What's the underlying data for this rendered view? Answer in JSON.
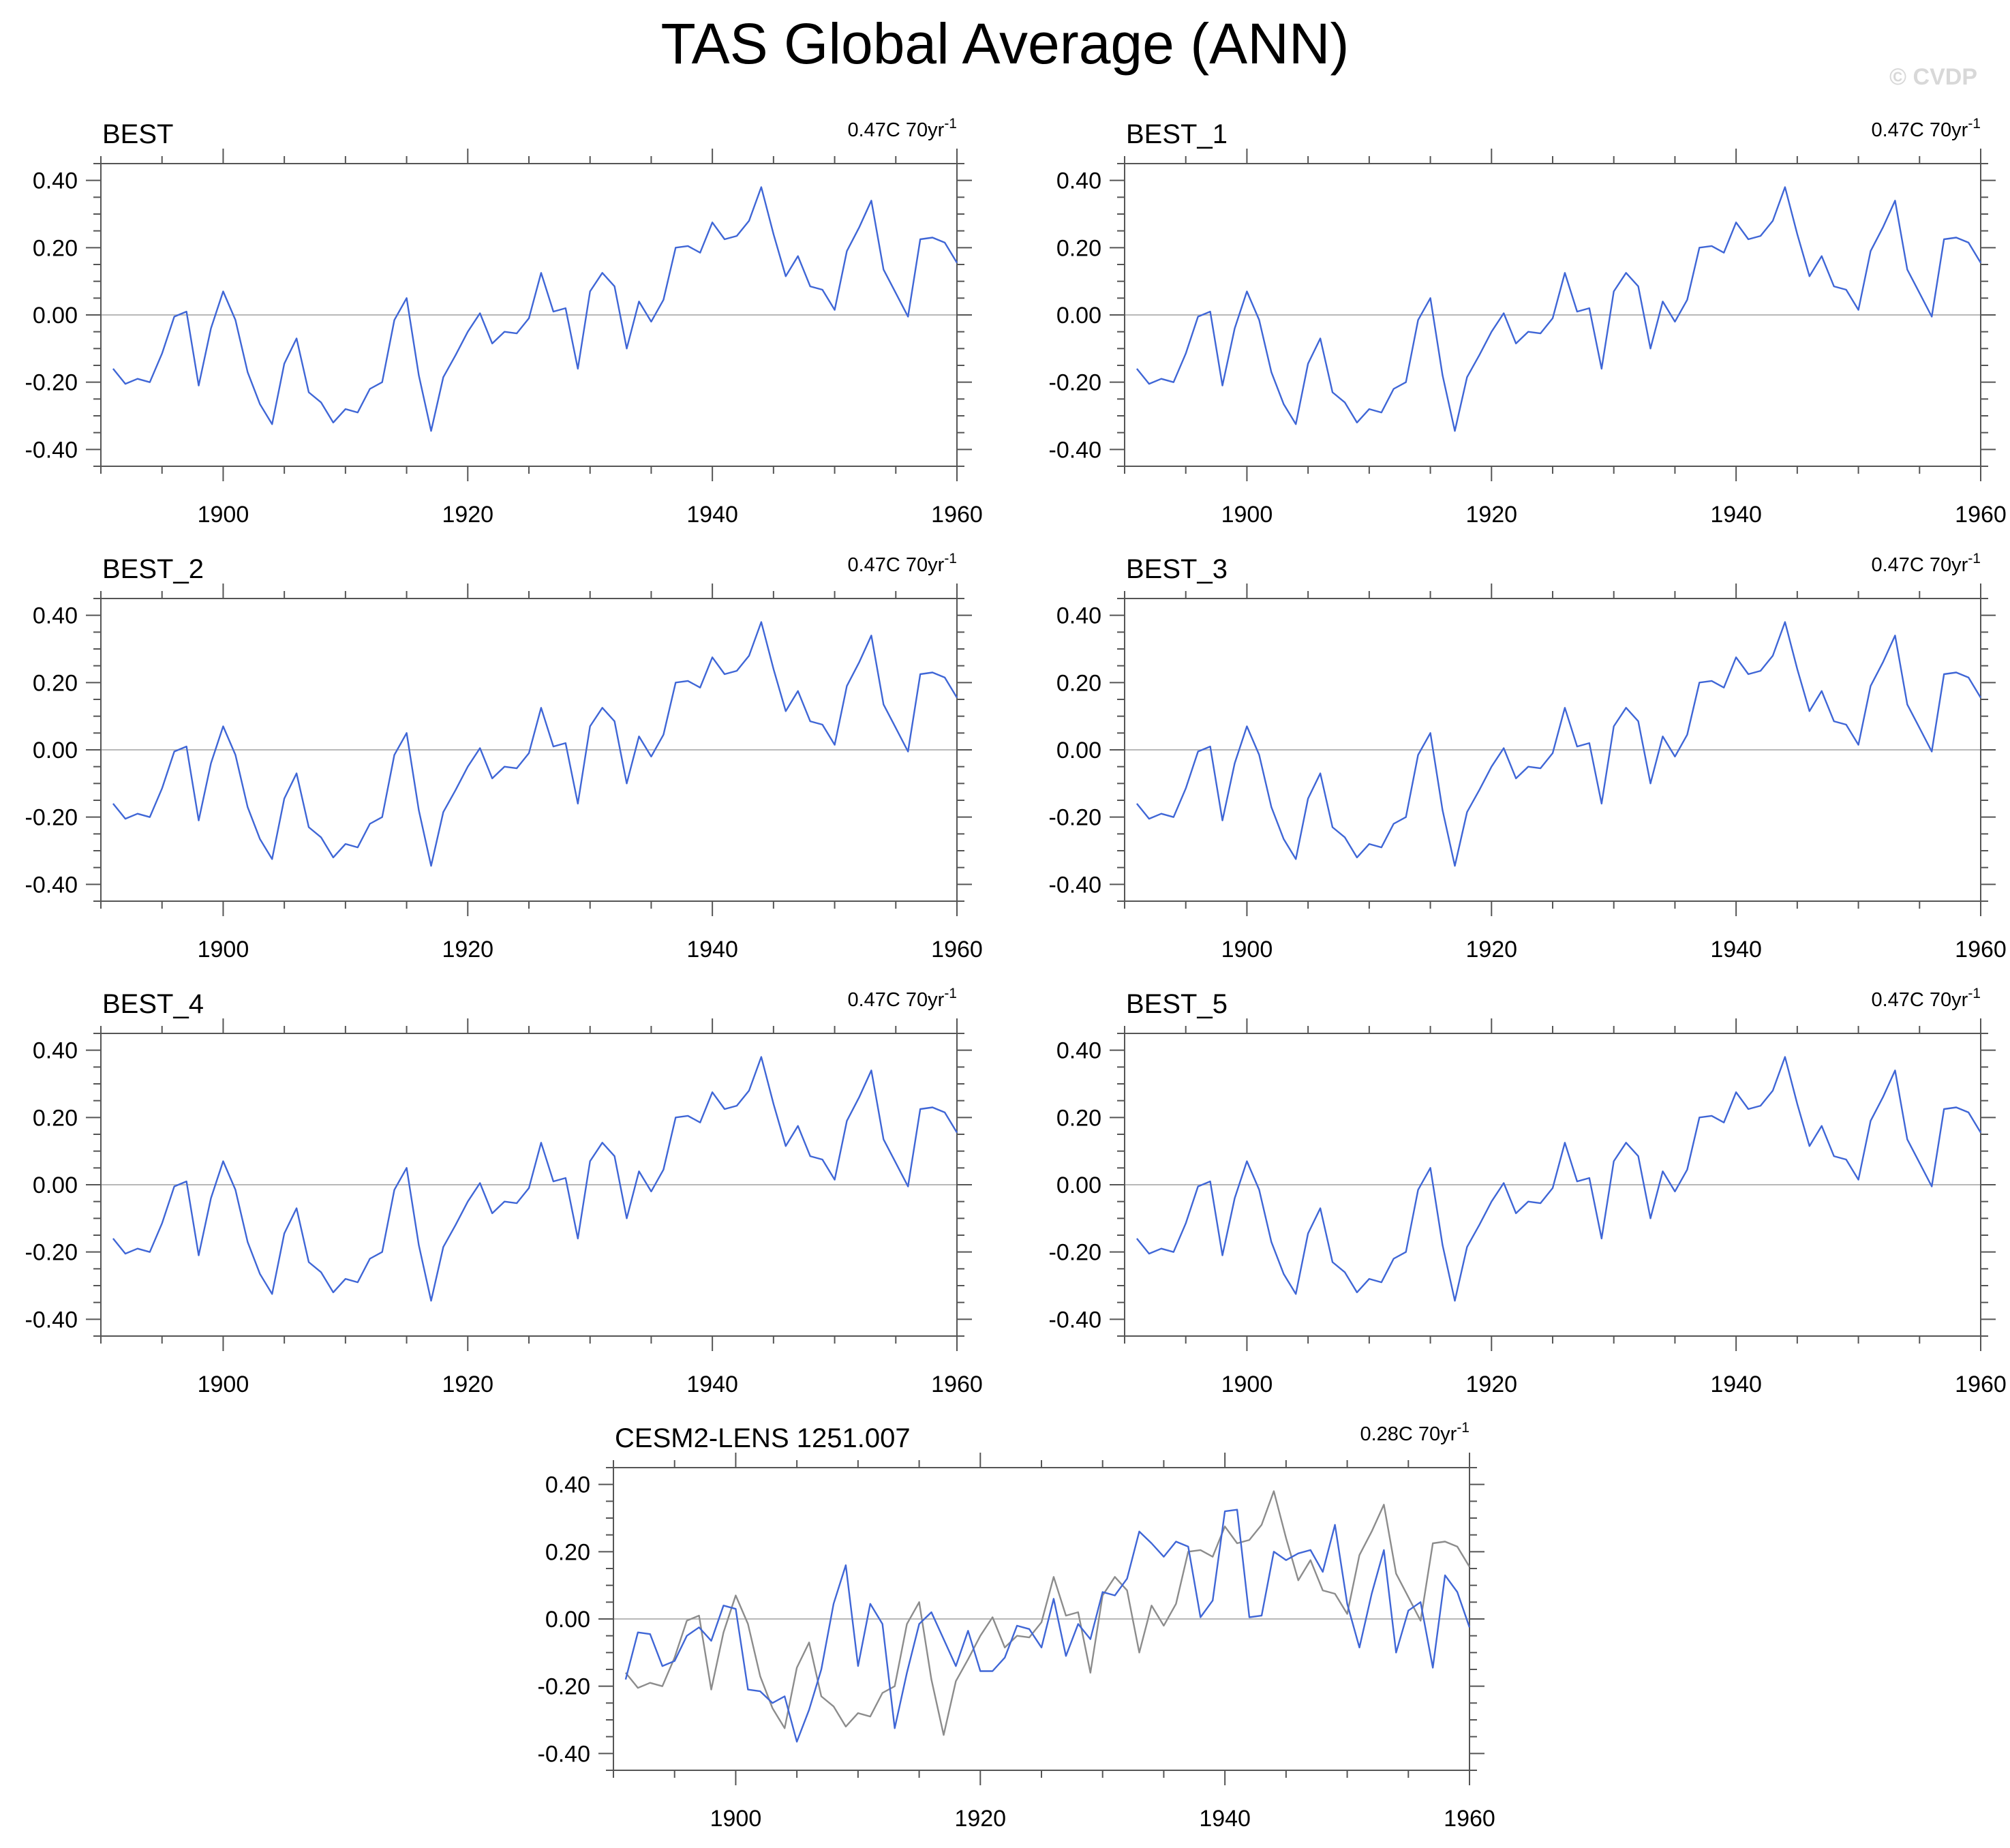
{
  "title": "TAS Global Average (ANN)",
  "copyright": "© CVDP",
  "colors": {
    "series": "#3f66d6",
    "observation": "#8c8c8c",
    "axis": "#555555",
    "zero_line": "#b8b8b8"
  },
  "chart_data": [
    {
      "type": "line",
      "title": "BEST",
      "trend_label": "0.47C 70yr",
      "trend_superscript": "-1",
      "xlim": [
        1890,
        1960
      ],
      "ylim": [
        -0.45,
        0.45
      ],
      "x_ticks": [
        1900,
        1920,
        1940,
        1960
      ],
      "x_tick_labels": [
        "1900",
        "1920",
        "1940",
        "1960"
      ],
      "y_ticks": [
        -0.4,
        -0.2,
        0.0,
        0.2,
        0.4
      ],
      "y_tick_labels": [
        "-0.40",
        "-0.20",
        "0.00",
        "0.20",
        "0.40"
      ],
      "zero_line": true,
      "x_start": 1891,
      "series": [
        {
          "role": "primary",
          "values": [
            -0.16,
            -0.205,
            -0.19,
            -0.2,
            -0.115,
            -0.005,
            0.01,
            -0.21,
            -0.04,
            0.07,
            -0.015,
            -0.17,
            -0.265,
            -0.325,
            -0.145,
            -0.07,
            -0.23,
            -0.26,
            -0.32,
            -0.28,
            -0.29,
            -0.22,
            -0.2,
            -0.015,
            0.05,
            -0.18,
            -0.345,
            -0.185,
            -0.12,
            -0.05,
            0.005,
            -0.085,
            -0.05,
            -0.055,
            -0.01,
            0.125,
            0.01,
            0.02,
            -0.16,
            0.07,
            0.125,
            0.085,
            -0.1,
            0.04,
            -0.02,
            0.045,
            0.2,
            0.205,
            0.185,
            0.275,
            0.225,
            0.235,
            0.28,
            0.38,
            0.24,
            0.115,
            0.175,
            0.085,
            0.075,
            0.015,
            0.19,
            0.26,
            0.34,
            0.135,
            0.065,
            -0.005,
            0.225,
            0.23,
            0.215,
            0.155
          ]
        }
      ]
    },
    {
      "type": "line",
      "title": "BEST_1",
      "trend_label": "0.47C 70yr",
      "trend_superscript": "-1",
      "xlim": [
        1890,
        1960
      ],
      "ylim": [
        -0.45,
        0.45
      ],
      "x_ticks": [
        1900,
        1920,
        1940,
        1960
      ],
      "x_tick_labels": [
        "1900",
        "1920",
        "1940",
        "1960"
      ],
      "y_ticks": [
        -0.4,
        -0.2,
        0.0,
        0.2,
        0.4
      ],
      "y_tick_labels": [
        "-0.40",
        "-0.20",
        "0.00",
        "0.20",
        "0.40"
      ],
      "zero_line": true,
      "x_start": 1891,
      "series": [
        {
          "role": "primary",
          "values": [
            -0.16,
            -0.205,
            -0.19,
            -0.2,
            -0.115,
            -0.005,
            0.01,
            -0.21,
            -0.04,
            0.07,
            -0.015,
            -0.17,
            -0.265,
            -0.325,
            -0.145,
            -0.07,
            -0.23,
            -0.26,
            -0.32,
            -0.28,
            -0.29,
            -0.22,
            -0.2,
            -0.015,
            0.05,
            -0.18,
            -0.345,
            -0.185,
            -0.12,
            -0.05,
            0.005,
            -0.085,
            -0.05,
            -0.055,
            -0.01,
            0.125,
            0.01,
            0.02,
            -0.16,
            0.07,
            0.125,
            0.085,
            -0.1,
            0.04,
            -0.02,
            0.045,
            0.2,
            0.205,
            0.185,
            0.275,
            0.225,
            0.235,
            0.28,
            0.38,
            0.24,
            0.115,
            0.175,
            0.085,
            0.075,
            0.015,
            0.19,
            0.26,
            0.34,
            0.135,
            0.065,
            -0.005,
            0.225,
            0.23,
            0.215,
            0.155
          ]
        }
      ]
    },
    {
      "type": "line",
      "title": "BEST_2",
      "trend_label": "0.47C 70yr",
      "trend_superscript": "-1",
      "xlim": [
        1890,
        1960
      ],
      "ylim": [
        -0.45,
        0.45
      ],
      "x_ticks": [
        1900,
        1920,
        1940,
        1960
      ],
      "x_tick_labels": [
        "1900",
        "1920",
        "1940",
        "1960"
      ],
      "y_ticks": [
        -0.4,
        -0.2,
        0.0,
        0.2,
        0.4
      ],
      "y_tick_labels": [
        "-0.40",
        "-0.20",
        "0.00",
        "0.20",
        "0.40"
      ],
      "zero_line": true,
      "x_start": 1891,
      "series": [
        {
          "role": "primary",
          "values": [
            -0.16,
            -0.205,
            -0.19,
            -0.2,
            -0.115,
            -0.005,
            0.01,
            -0.21,
            -0.04,
            0.07,
            -0.015,
            -0.17,
            -0.265,
            -0.325,
            -0.145,
            -0.07,
            -0.23,
            -0.26,
            -0.32,
            -0.28,
            -0.29,
            -0.22,
            -0.2,
            -0.015,
            0.05,
            -0.18,
            -0.345,
            -0.185,
            -0.12,
            -0.05,
            0.005,
            -0.085,
            -0.05,
            -0.055,
            -0.01,
            0.125,
            0.01,
            0.02,
            -0.16,
            0.07,
            0.125,
            0.085,
            -0.1,
            0.04,
            -0.02,
            0.045,
            0.2,
            0.205,
            0.185,
            0.275,
            0.225,
            0.235,
            0.28,
            0.38,
            0.24,
            0.115,
            0.175,
            0.085,
            0.075,
            0.015,
            0.19,
            0.26,
            0.34,
            0.135,
            0.065,
            -0.005,
            0.225,
            0.23,
            0.215,
            0.155
          ]
        }
      ]
    },
    {
      "type": "line",
      "title": "BEST_3",
      "trend_label": "0.47C 70yr",
      "trend_superscript": "-1",
      "xlim": [
        1890,
        1960
      ],
      "ylim": [
        -0.45,
        0.45
      ],
      "x_ticks": [
        1900,
        1920,
        1940,
        1960
      ],
      "x_tick_labels": [
        "1900",
        "1920",
        "1940",
        "1960"
      ],
      "y_ticks": [
        -0.4,
        -0.2,
        0.0,
        0.2,
        0.4
      ],
      "y_tick_labels": [
        "-0.40",
        "-0.20",
        "0.00",
        "0.20",
        "0.40"
      ],
      "zero_line": true,
      "x_start": 1891,
      "series": [
        {
          "role": "primary",
          "values": [
            -0.16,
            -0.205,
            -0.19,
            -0.2,
            -0.115,
            -0.005,
            0.01,
            -0.21,
            -0.04,
            0.07,
            -0.015,
            -0.17,
            -0.265,
            -0.325,
            -0.145,
            -0.07,
            -0.23,
            -0.26,
            -0.32,
            -0.28,
            -0.29,
            -0.22,
            -0.2,
            -0.015,
            0.05,
            -0.18,
            -0.345,
            -0.185,
            -0.12,
            -0.05,
            0.005,
            -0.085,
            -0.05,
            -0.055,
            -0.01,
            0.125,
            0.01,
            0.02,
            -0.16,
            0.07,
            0.125,
            0.085,
            -0.1,
            0.04,
            -0.02,
            0.045,
            0.2,
            0.205,
            0.185,
            0.275,
            0.225,
            0.235,
            0.28,
            0.38,
            0.24,
            0.115,
            0.175,
            0.085,
            0.075,
            0.015,
            0.19,
            0.26,
            0.34,
            0.135,
            0.065,
            -0.005,
            0.225,
            0.23,
            0.215,
            0.155
          ]
        }
      ]
    },
    {
      "type": "line",
      "title": "BEST_4",
      "trend_label": "0.47C 70yr",
      "trend_superscript": "-1",
      "xlim": [
        1890,
        1960
      ],
      "ylim": [
        -0.45,
        0.45
      ],
      "x_ticks": [
        1900,
        1920,
        1940,
        1960
      ],
      "x_tick_labels": [
        "1900",
        "1920",
        "1940",
        "1960"
      ],
      "y_ticks": [
        -0.4,
        -0.2,
        0.0,
        0.2,
        0.4
      ],
      "y_tick_labels": [
        "-0.40",
        "-0.20",
        "0.00",
        "0.20",
        "0.40"
      ],
      "zero_line": true,
      "x_start": 1891,
      "series": [
        {
          "role": "primary",
          "values": [
            -0.16,
            -0.205,
            -0.19,
            -0.2,
            -0.115,
            -0.005,
            0.01,
            -0.21,
            -0.04,
            0.07,
            -0.015,
            -0.17,
            -0.265,
            -0.325,
            -0.145,
            -0.07,
            -0.23,
            -0.26,
            -0.32,
            -0.28,
            -0.29,
            -0.22,
            -0.2,
            -0.015,
            0.05,
            -0.18,
            -0.345,
            -0.185,
            -0.12,
            -0.05,
            0.005,
            -0.085,
            -0.05,
            -0.055,
            -0.01,
            0.125,
            0.01,
            0.02,
            -0.16,
            0.07,
            0.125,
            0.085,
            -0.1,
            0.04,
            -0.02,
            0.045,
            0.2,
            0.205,
            0.185,
            0.275,
            0.225,
            0.235,
            0.28,
            0.38,
            0.24,
            0.115,
            0.175,
            0.085,
            0.075,
            0.015,
            0.19,
            0.26,
            0.34,
            0.135,
            0.065,
            -0.005,
            0.225,
            0.23,
            0.215,
            0.155
          ]
        }
      ]
    },
    {
      "type": "line",
      "title": "BEST_5",
      "trend_label": "0.47C 70yr",
      "trend_superscript": "-1",
      "xlim": [
        1890,
        1960
      ],
      "ylim": [
        -0.45,
        0.45
      ],
      "x_ticks": [
        1900,
        1920,
        1940,
        1960
      ],
      "x_tick_labels": [
        "1900",
        "1920",
        "1940",
        "1960"
      ],
      "y_ticks": [
        -0.4,
        -0.2,
        0.0,
        0.2,
        0.4
      ],
      "y_tick_labels": [
        "-0.40",
        "-0.20",
        "0.00",
        "0.20",
        "0.40"
      ],
      "zero_line": true,
      "x_start": 1891,
      "series": [
        {
          "role": "primary",
          "values": [
            -0.16,
            -0.205,
            -0.19,
            -0.2,
            -0.115,
            -0.005,
            0.01,
            -0.21,
            -0.04,
            0.07,
            -0.015,
            -0.17,
            -0.265,
            -0.325,
            -0.145,
            -0.07,
            -0.23,
            -0.26,
            -0.32,
            -0.28,
            -0.29,
            -0.22,
            -0.2,
            -0.015,
            0.05,
            -0.18,
            -0.345,
            -0.185,
            -0.12,
            -0.05,
            0.005,
            -0.085,
            -0.05,
            -0.055,
            -0.01,
            0.125,
            0.01,
            0.02,
            -0.16,
            0.07,
            0.125,
            0.085,
            -0.1,
            0.04,
            -0.02,
            0.045,
            0.2,
            0.205,
            0.185,
            0.275,
            0.225,
            0.235,
            0.28,
            0.38,
            0.24,
            0.115,
            0.175,
            0.085,
            0.075,
            0.015,
            0.19,
            0.26,
            0.34,
            0.135,
            0.065,
            -0.005,
            0.225,
            0.23,
            0.215,
            0.155
          ]
        }
      ]
    },
    {
      "type": "line",
      "title": "CESM2-LENS 1251.007",
      "trend_label": "0.28C 70yr",
      "trend_superscript": "-1",
      "xlim": [
        1890,
        1960
      ],
      "ylim": [
        -0.45,
        0.45
      ],
      "x_ticks": [
        1900,
        1920,
        1940,
        1960
      ],
      "x_tick_labels": [
        "1900",
        "1920",
        "1940",
        "1960"
      ],
      "y_ticks": [
        -0.4,
        -0.2,
        0.0,
        0.2,
        0.4
      ],
      "y_tick_labels": [
        "-0.40",
        "-0.20",
        "0.00",
        "0.20",
        "0.40"
      ],
      "zero_line": true,
      "x_start": 1891,
      "series": [
        {
          "role": "observation",
          "values": [
            -0.16,
            -0.205,
            -0.19,
            -0.2,
            -0.115,
            -0.005,
            0.01,
            -0.21,
            -0.04,
            0.07,
            -0.015,
            -0.17,
            -0.265,
            -0.325,
            -0.145,
            -0.07,
            -0.23,
            -0.26,
            -0.32,
            -0.28,
            -0.29,
            -0.22,
            -0.2,
            -0.015,
            0.05,
            -0.18,
            -0.345,
            -0.185,
            -0.12,
            -0.05,
            0.005,
            -0.085,
            -0.05,
            -0.055,
            -0.01,
            0.125,
            0.01,
            0.02,
            -0.16,
            0.07,
            0.125,
            0.085,
            -0.1,
            0.04,
            -0.02,
            0.045,
            0.2,
            0.205,
            0.185,
            0.275,
            0.225,
            0.235,
            0.28,
            0.38,
            0.24,
            0.115,
            0.175,
            0.085,
            0.075,
            0.015,
            0.19,
            0.26,
            0.34,
            0.135,
            0.065,
            -0.005,
            0.225,
            0.23,
            0.215,
            0.155
          ]
        },
        {
          "role": "primary",
          "values": [
            -0.18,
            -0.04,
            -0.045,
            -0.14,
            -0.125,
            -0.05,
            -0.025,
            -0.065,
            0.04,
            0.03,
            -0.21,
            -0.215,
            -0.25,
            -0.23,
            -0.365,
            -0.27,
            -0.15,
            0.045,
            0.16,
            -0.14,
            0.045,
            -0.015,
            -0.325,
            -0.16,
            -0.015,
            0.02,
            -0.06,
            -0.14,
            -0.035,
            -0.155,
            -0.155,
            -0.115,
            -0.02,
            -0.03,
            -0.085,
            0.06,
            -0.11,
            -0.015,
            -0.06,
            0.08,
            0.07,
            0.12,
            0.26,
            0.225,
            0.185,
            0.23,
            0.215,
            0.005,
            0.055,
            0.32,
            0.325,
            0.005,
            0.01,
            0.2,
            0.175,
            0.195,
            0.205,
            0.14,
            0.28,
            0.045,
            -0.085,
            0.075,
            0.205,
            -0.1,
            0.025,
            0.05,
            -0.145,
            0.13,
            0.08,
            -0.025
          ]
        }
      ]
    }
  ]
}
